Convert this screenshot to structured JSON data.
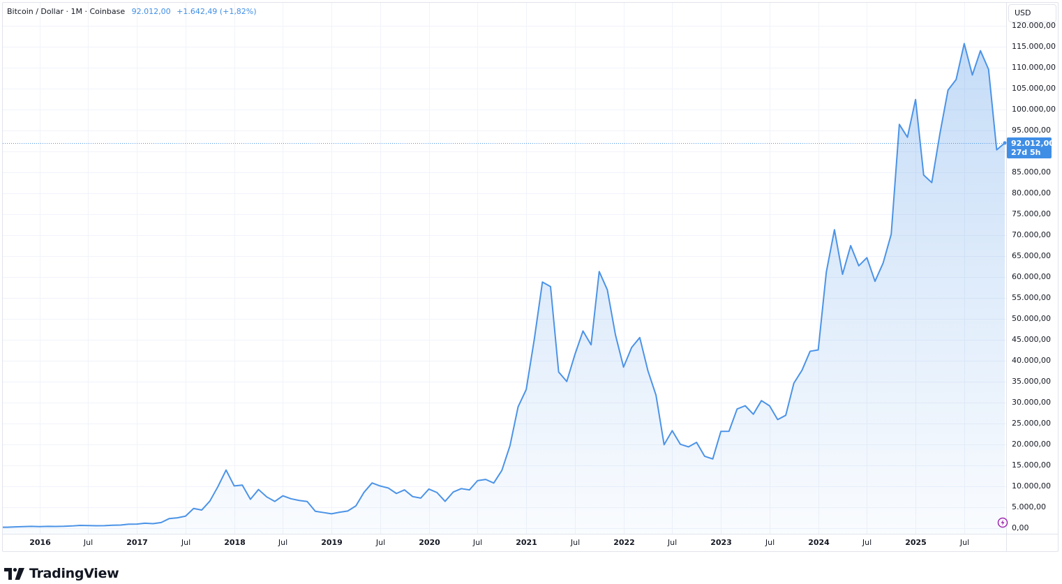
{
  "legend": {
    "symbol": "Bitcoin / Dollar · 1M · Coinbase",
    "last": "92.012,00",
    "change": "+1.642,49 (+1,82%)"
  },
  "price_axis": {
    "currency_button": "USD",
    "last_price_label": "92.012,00",
    "countdown_label": "27d 5h"
  },
  "brand": {
    "name": "TradingView"
  },
  "icons": {
    "flash": "lightning-icon",
    "logo": "tradingview-logo-icon"
  },
  "colors": {
    "line": "#4b93e7",
    "last_label": "#3f8ee6",
    "grid": "#f0f3fa",
    "border": "#e0e3eb",
    "flash": "#9c27b0"
  },
  "chart_data": {
    "type": "area",
    "title": "Bitcoin / Dollar · 1M · Coinbase",
    "xlabel": "",
    "ylabel": "USD",
    "ylim": [
      0,
      120000
    ],
    "grid": true,
    "legend_position": "top-left",
    "categories": [
      "2015-08",
      "2015-09",
      "2015-10",
      "2015-11",
      "2015-12",
      "2016-01",
      "2016-02",
      "2016-03",
      "2016-04",
      "2016-05",
      "2016-06",
      "2016-07",
      "2016-08",
      "2016-09",
      "2016-10",
      "2016-11",
      "2016-12",
      "2017-01",
      "2017-02",
      "2017-03",
      "2017-04",
      "2017-05",
      "2017-06",
      "2017-07",
      "2017-08",
      "2017-09",
      "2017-10",
      "2017-11",
      "2017-12",
      "2018-01",
      "2018-02",
      "2018-03",
      "2018-04",
      "2018-05",
      "2018-06",
      "2018-07",
      "2018-08",
      "2018-09",
      "2018-10",
      "2018-11",
      "2018-12",
      "2019-01",
      "2019-02",
      "2019-03",
      "2019-04",
      "2019-05",
      "2019-06",
      "2019-07",
      "2019-08",
      "2019-09",
      "2019-10",
      "2019-11",
      "2019-12",
      "2020-01",
      "2020-02",
      "2020-03",
      "2020-04",
      "2020-05",
      "2020-06",
      "2020-07",
      "2020-08",
      "2020-09",
      "2020-10",
      "2020-11",
      "2020-12",
      "2021-01",
      "2021-02",
      "2021-03",
      "2021-04",
      "2021-05",
      "2021-06",
      "2021-07",
      "2021-08",
      "2021-09",
      "2021-10",
      "2021-11",
      "2021-12",
      "2022-01",
      "2022-02",
      "2022-03",
      "2022-04",
      "2022-05",
      "2022-06",
      "2022-07",
      "2022-08",
      "2022-09",
      "2022-10",
      "2022-11",
      "2022-12",
      "2023-01",
      "2023-02",
      "2023-03",
      "2023-04",
      "2023-05",
      "2023-06",
      "2023-07",
      "2023-08",
      "2023-09",
      "2023-10",
      "2023-11",
      "2023-12",
      "2024-01",
      "2024-02",
      "2024-03",
      "2024-04",
      "2024-05",
      "2024-06",
      "2024-07",
      "2024-08",
      "2024-09",
      "2024-10",
      "2024-11",
      "2024-12",
      "2025-01",
      "2025-02",
      "2025-03",
      "2025-04",
      "2025-05",
      "2025-06",
      "2025-07",
      "2025-08",
      "2025-09",
      "2025-10",
      "2025-11",
      "2025-12"
    ],
    "series": [
      {
        "name": "Bitcoin / Dollar",
        "values": [
          230,
          236,
          314,
          377,
          430,
          368,
          437,
          416,
          448,
          531,
          673,
          624,
          573,
          609,
          700,
          742,
          964,
          970,
          1190,
          1080,
          1348,
          2300,
          2480,
          2875,
          4703,
          4338,
          6468,
          9947,
          13880,
          10100,
          10300,
          6900,
          9240,
          7490,
          6390,
          7730,
          7030,
          6630,
          6370,
          4040,
          3740,
          3440,
          3810,
          4100,
          5320,
          8550,
          10800,
          10080,
          9590,
          8290,
          9150,
          7550,
          7190,
          9350,
          8520,
          6410,
          8630,
          9450,
          9140,
          11350,
          11650,
          10780,
          13800,
          19700,
          28990,
          33110,
          45160,
          58800,
          57700,
          37300,
          35040,
          41460,
          47100,
          43800,
          61300,
          56950,
          46210,
          38480,
          43160,
          45530,
          37640,
          31790,
          19940,
          23300,
          20050,
          19420,
          20500,
          17170,
          16540,
          23130,
          23150,
          28470,
          29250,
          27220,
          30470,
          29230,
          25940,
          26970,
          34650,
          37720,
          42260,
          42580,
          61180,
          71290,
          60640,
          67490,
          62680,
          64620,
          58970,
          63330,
          70220,
          96450,
          93380,
          102400,
          84350,
          82550,
          94210,
          104640,
          107170,
          115760,
          108250,
          114050,
          109610,
          90370,
          92012
        ]
      }
    ],
    "last_value": 92012,
    "yticks": [
      {
        "v": 120000,
        "label": "120.000,00"
      },
      {
        "v": 115000,
        "label": "115.000,00"
      },
      {
        "v": 110000,
        "label": "110.000,00"
      },
      {
        "v": 105000,
        "label": "105.000,00"
      },
      {
        "v": 100000,
        "label": "100.000,00"
      },
      {
        "v": 95000,
        "label": "95.000,00"
      },
      {
        "v": 85000,
        "label": "85.000,00"
      },
      {
        "v": 80000,
        "label": "80.000,00"
      },
      {
        "v": 75000,
        "label": "75.000,00"
      },
      {
        "v": 70000,
        "label": "70.000,00"
      },
      {
        "v": 65000,
        "label": "65.000,00"
      },
      {
        "v": 60000,
        "label": "60.000,00"
      },
      {
        "v": 55000,
        "label": "55.000,00"
      },
      {
        "v": 50000,
        "label": "50.000,00"
      },
      {
        "v": 45000,
        "label": "45.000,00"
      },
      {
        "v": 40000,
        "label": "40.000,00"
      },
      {
        "v": 35000,
        "label": "35.000,00"
      },
      {
        "v": 30000,
        "label": "30.000,00"
      },
      {
        "v": 25000,
        "label": "25.000,00"
      },
      {
        "v": 20000,
        "label": "20.000,00"
      },
      {
        "v": 15000,
        "label": "15.000,00"
      },
      {
        "v": 10000,
        "label": "10.000,00"
      },
      {
        "v": 5000,
        "label": "5.000,00"
      },
      {
        "v": 0,
        "label": "0,00"
      }
    ],
    "xticks": [
      {
        "i": 5,
        "label": "2016",
        "year": true
      },
      {
        "i": 11,
        "label": "Jul"
      },
      {
        "i": 17,
        "label": "2017",
        "year": true
      },
      {
        "i": 23,
        "label": "Jul"
      },
      {
        "i": 29,
        "label": "2018",
        "year": true
      },
      {
        "i": 35,
        "label": "Jul"
      },
      {
        "i": 41,
        "label": "2019",
        "year": true
      },
      {
        "i": 47,
        "label": "Jul"
      },
      {
        "i": 53,
        "label": "2020",
        "year": true
      },
      {
        "i": 59,
        "label": "Jul"
      },
      {
        "i": 65,
        "label": "2021",
        "year": true
      },
      {
        "i": 71,
        "label": "Jul"
      },
      {
        "i": 77,
        "label": "2022",
        "year": true
      },
      {
        "i": 83,
        "label": "Jul"
      },
      {
        "i": 89,
        "label": "2023",
        "year": true
      },
      {
        "i": 95,
        "label": "Jul"
      },
      {
        "i": 101,
        "label": "2024",
        "year": true
      },
      {
        "i": 107,
        "label": "Jul"
      },
      {
        "i": 113,
        "label": "2025",
        "year": true
      },
      {
        "i": 119,
        "label": "Jul"
      }
    ]
  }
}
